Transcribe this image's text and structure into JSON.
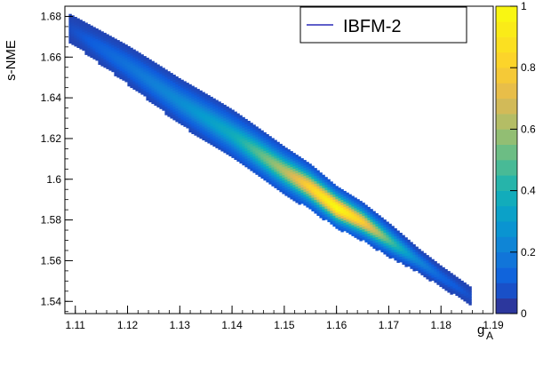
{
  "chart_data": {
    "type": "heatmap",
    "title": "",
    "xlabel": "g",
    "xlabel_subscript": "A",
    "ylabel": "s-NME",
    "xlim": [
      1.108,
      1.19
    ],
    "ylim": [
      1.534,
      1.685
    ],
    "x_ticks": [
      "1.11",
      "1.12",
      "1.13",
      "1.14",
      "1.15",
      "1.16",
      "1.17",
      "1.18",
      "1.19"
    ],
    "y_ticks": [
      "1.54",
      "1.56",
      "1.58",
      "1.6",
      "1.62",
      "1.64",
      "1.66",
      "1.68"
    ],
    "colorbar": {
      "range": [
        0,
        1
      ],
      "ticks": [
        "0",
        "0.2",
        "0.4",
        "0.6",
        "0.8",
        "1"
      ]
    },
    "legend": {
      "position": "top-right",
      "entries": [
        {
          "name": "IBFM-2",
          "color": "#2a2ab8"
        }
      ]
    },
    "density_ridge": [
      {
        "x": 1.109,
        "y": 1.674,
        "density": 0.02
      },
      {
        "x": 1.12,
        "y": 1.656,
        "density": 0.12
      },
      {
        "x": 1.13,
        "y": 1.638,
        "density": 0.2
      },
      {
        "x": 1.14,
        "y": 1.622,
        "density": 0.32
      },
      {
        "x": 1.15,
        "y": 1.604,
        "density": 0.58
      },
      {
        "x": 1.155,
        "y": 1.596,
        "density": 0.78
      },
      {
        "x": 1.16,
        "y": 1.586,
        "density": 0.95
      },
      {
        "x": 1.165,
        "y": 1.579,
        "density": 0.75
      },
      {
        "x": 1.17,
        "y": 1.57,
        "density": 0.45
      },
      {
        "x": 1.175,
        "y": 1.561,
        "density": 0.2
      },
      {
        "x": 1.18,
        "y": 1.552,
        "density": 0.08
      },
      {
        "x": 1.186,
        "y": 1.542,
        "density": 0.02
      }
    ],
    "colors": {
      "low": "#352a87",
      "high": "#f9fb0e",
      "legend_line": "#2a2ab8"
    }
  }
}
